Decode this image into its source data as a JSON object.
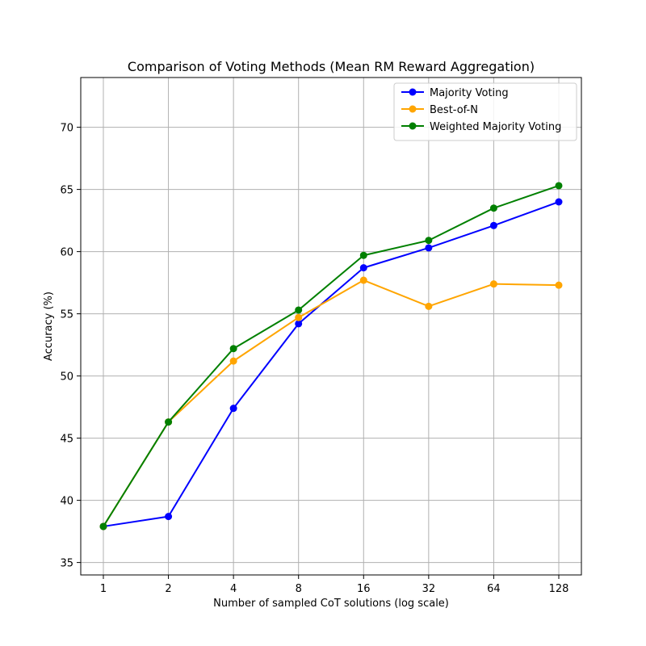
{
  "chart_data": {
    "type": "line",
    "title": "Comparison of Voting Methods (Mean RM Reward Aggregation)",
    "xlabel": "Number of sampled CoT solutions (log scale)",
    "ylabel": "Accuracy (%)",
    "x_scale": "log2",
    "categories": [
      "1",
      "2",
      "4",
      "8",
      "16",
      "32",
      "64",
      "128"
    ],
    "x": [
      1,
      2,
      4,
      8,
      16,
      32,
      64,
      128
    ],
    "ylim": [
      34,
      74
    ],
    "y_ticks": [
      35,
      40,
      45,
      50,
      55,
      60,
      65,
      70
    ],
    "grid": true,
    "legend_position": "top-right",
    "series": [
      {
        "name": "Majority Voting",
        "color": "#0000ff",
        "marker": "circle",
        "values": [
          37.9,
          38.7,
          47.4,
          54.2,
          58.7,
          60.3,
          62.1,
          64.0
        ]
      },
      {
        "name": "Best-of-N",
        "color": "#ffa500",
        "marker": "circle",
        "values": [
          37.9,
          46.3,
          51.2,
          54.7,
          57.7,
          55.6,
          57.4,
          57.3
        ]
      },
      {
        "name": "Weighted Majority Voting",
        "color": "#008000",
        "marker": "circle",
        "values": [
          37.9,
          46.3,
          52.2,
          55.3,
          59.7,
          60.9,
          63.5,
          65.3
        ]
      }
    ]
  }
}
